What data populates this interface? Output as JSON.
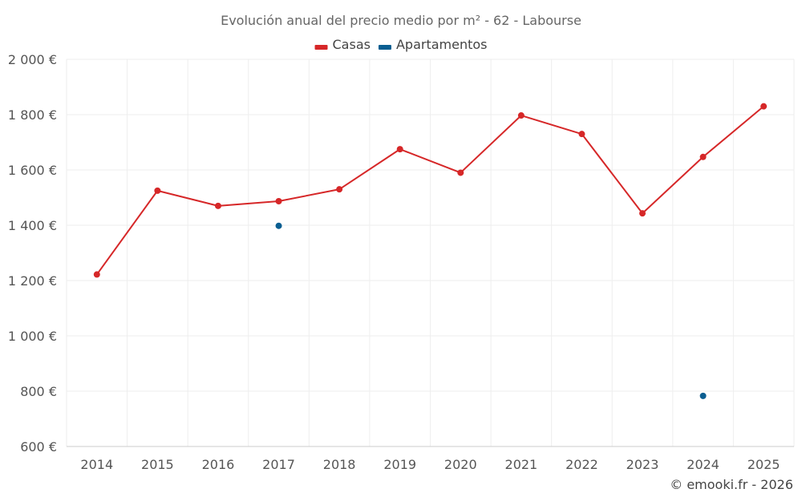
{
  "chart_data": {
    "type": "line",
    "title": "Evolución anual del precio medio por m² - 62 - Labourse",
    "x": [
      "2014",
      "2015",
      "2016",
      "2017",
      "2018",
      "2019",
      "2020",
      "2021",
      "2022",
      "2023",
      "2024",
      "2025"
    ],
    "ylim": [
      600,
      2000
    ],
    "yticks": [
      600,
      800,
      1000,
      1200,
      1400,
      1600,
      1800,
      2000
    ],
    "ytick_labels": [
      "600 €",
      "800 €",
      "1 000 €",
      "1 200 €",
      "1 400 €",
      "1 600 €",
      "1 800 €",
      "2 000 €"
    ],
    "grid": true,
    "legend_position": "top-center",
    "series": [
      {
        "name": "Casas",
        "color": "#d62728",
        "values": [
          1222,
          1525,
          1470,
          1487,
          1530,
          1675,
          1590,
          1797,
          1730,
          1443,
          1647,
          1830
        ]
      },
      {
        "name": "Apartamentos",
        "color": "#0a5e91",
        "values": [
          null,
          null,
          null,
          1398,
          null,
          null,
          null,
          null,
          null,
          null,
          783,
          null
        ]
      }
    ],
    "credit": "© emooki.fr - 2026"
  }
}
